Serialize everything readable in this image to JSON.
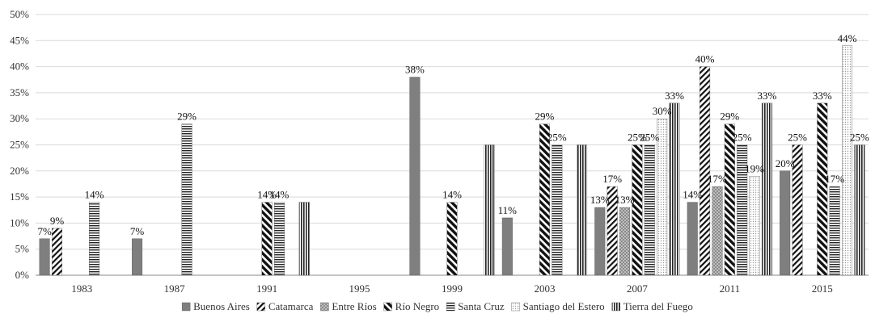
{
  "chart_data": {
    "type": "bar",
    "categories": [
      "1983",
      "1987",
      "1991",
      "1995",
      "1999",
      "2003",
      "2007",
      "2011",
      "2015"
    ],
    "ylim": [
      0,
      50
    ],
    "yticks": [
      "0%",
      "5%",
      "10%",
      "15%",
      "20%",
      "25%",
      "30%",
      "35%",
      "40%",
      "45%",
      "50%"
    ],
    "grid": "horizontal",
    "legend_position": "bottom",
    "series": [
      {
        "name": "Buenos Aires",
        "pattern": "solid",
        "values": [
          7,
          7,
          null,
          null,
          38,
          11,
          13,
          14,
          20
        ],
        "labels": [
          "7%",
          "7%",
          "",
          "",
          "38%",
          "11%",
          "13%",
          "14%",
          "20%"
        ]
      },
      {
        "name": "Catamarca",
        "pattern": "diagonal",
        "values": [
          9,
          null,
          null,
          null,
          null,
          null,
          17,
          40,
          25
        ],
        "labels": [
          "9%",
          "",
          "",
          "",
          "",
          "",
          "17%",
          "40%",
          "25%"
        ]
      },
      {
        "name": "Entre Ríos",
        "pattern": "dots",
        "values": [
          null,
          null,
          null,
          null,
          null,
          null,
          13,
          17,
          null
        ],
        "labels": [
          "",
          "",
          "",
          "",
          "",
          "",
          "13%",
          "17%",
          ""
        ]
      },
      {
        "name": "Río Negro",
        "pattern": "diagonal-bold",
        "values": [
          null,
          null,
          14,
          null,
          14,
          29,
          25,
          29,
          33
        ],
        "labels": [
          "",
          "",
          "14%",
          "",
          "14%",
          "29%",
          "25%",
          "29%",
          "33%"
        ]
      },
      {
        "name": "Santa Cruz",
        "pattern": "hlines",
        "values": [
          14,
          29,
          14,
          null,
          null,
          25,
          25,
          25,
          17
        ],
        "labels": [
          "14%",
          "29%",
          "14%",
          "",
          "",
          "25%",
          "25%",
          "25%",
          "17%"
        ]
      },
      {
        "name": "Santiago del Estero",
        "pattern": "light-dots",
        "values": [
          null,
          null,
          null,
          null,
          null,
          null,
          30,
          19,
          44
        ],
        "labels": [
          "",
          "",
          "",
          "",
          "",
          "",
          "30%",
          "19%",
          "44%"
        ]
      },
      {
        "name": "Tierra del Fuego",
        "pattern": "vlines",
        "values": [
          null,
          null,
          14,
          null,
          25,
          25,
          33,
          33,
          25
        ],
        "labels": [
          "",
          "",
          "",
          "",
          "",
          "",
          "33%",
          "33%",
          "25%"
        ]
      }
    ]
  }
}
